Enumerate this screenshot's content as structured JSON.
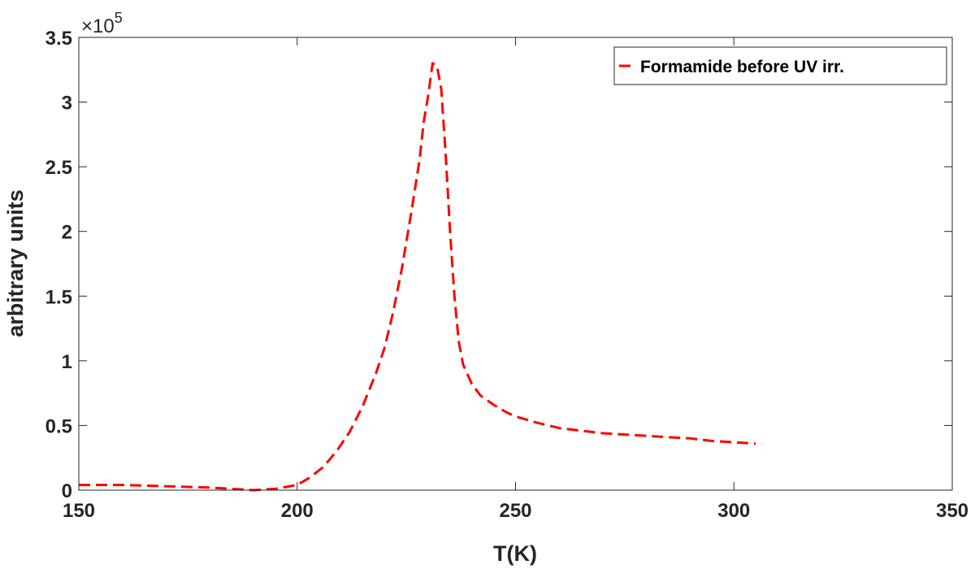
{
  "chart_data": {
    "type": "line",
    "title": "",
    "xlabel": "T(K)",
    "ylabel": "arbitrary units",
    "xlim": [
      150,
      350
    ],
    "ylim": [
      0,
      3.5
    ],
    "x_ticks": [
      150,
      200,
      250,
      300,
      350
    ],
    "x_tick_labels": [
      "150",
      "200",
      "250",
      "300",
      "350"
    ],
    "y_ticks": [
      0,
      0.5,
      1,
      1.5,
      2,
      2.5,
      3,
      3.5
    ],
    "y_tick_labels": [
      "0",
      "0.5",
      "1",
      "1.5",
      "2",
      "2.5",
      "3",
      "3.5"
    ],
    "y_multiplier": {
      "base": "×10",
      "exponent": "5"
    },
    "grid": false,
    "legend_position": "top-right",
    "series": [
      {
        "name": "Formamide before UV irr.",
        "color": "#ff0000",
        "line_style": "dashed",
        "x": [
          150,
          160,
          170,
          180,
          185,
          190,
          195,
          200,
          203,
          206,
          209,
          212,
          215,
          218,
          220,
          222,
          224,
          226,
          228,
          229,
          230,
          231,
          232,
          233,
          234,
          235,
          236,
          237,
          238,
          240,
          242,
          245,
          248,
          250,
          255,
          260,
          265,
          270,
          275,
          280,
          285,
          290,
          295,
          300,
          305
        ],
        "y": [
          0.04,
          0.04,
          0.03,
          0.02,
          0.01,
          0.0,
          0.01,
          0.04,
          0.1,
          0.18,
          0.3,
          0.45,
          0.65,
          0.9,
          1.1,
          1.38,
          1.72,
          2.12,
          2.55,
          2.85,
          3.05,
          3.3,
          3.28,
          3.1,
          2.6,
          2.0,
          1.5,
          1.15,
          0.97,
          0.82,
          0.73,
          0.66,
          0.6,
          0.57,
          0.52,
          0.48,
          0.46,
          0.44,
          0.43,
          0.42,
          0.41,
          0.4,
          0.38,
          0.37,
          0.36
        ]
      }
    ]
  }
}
